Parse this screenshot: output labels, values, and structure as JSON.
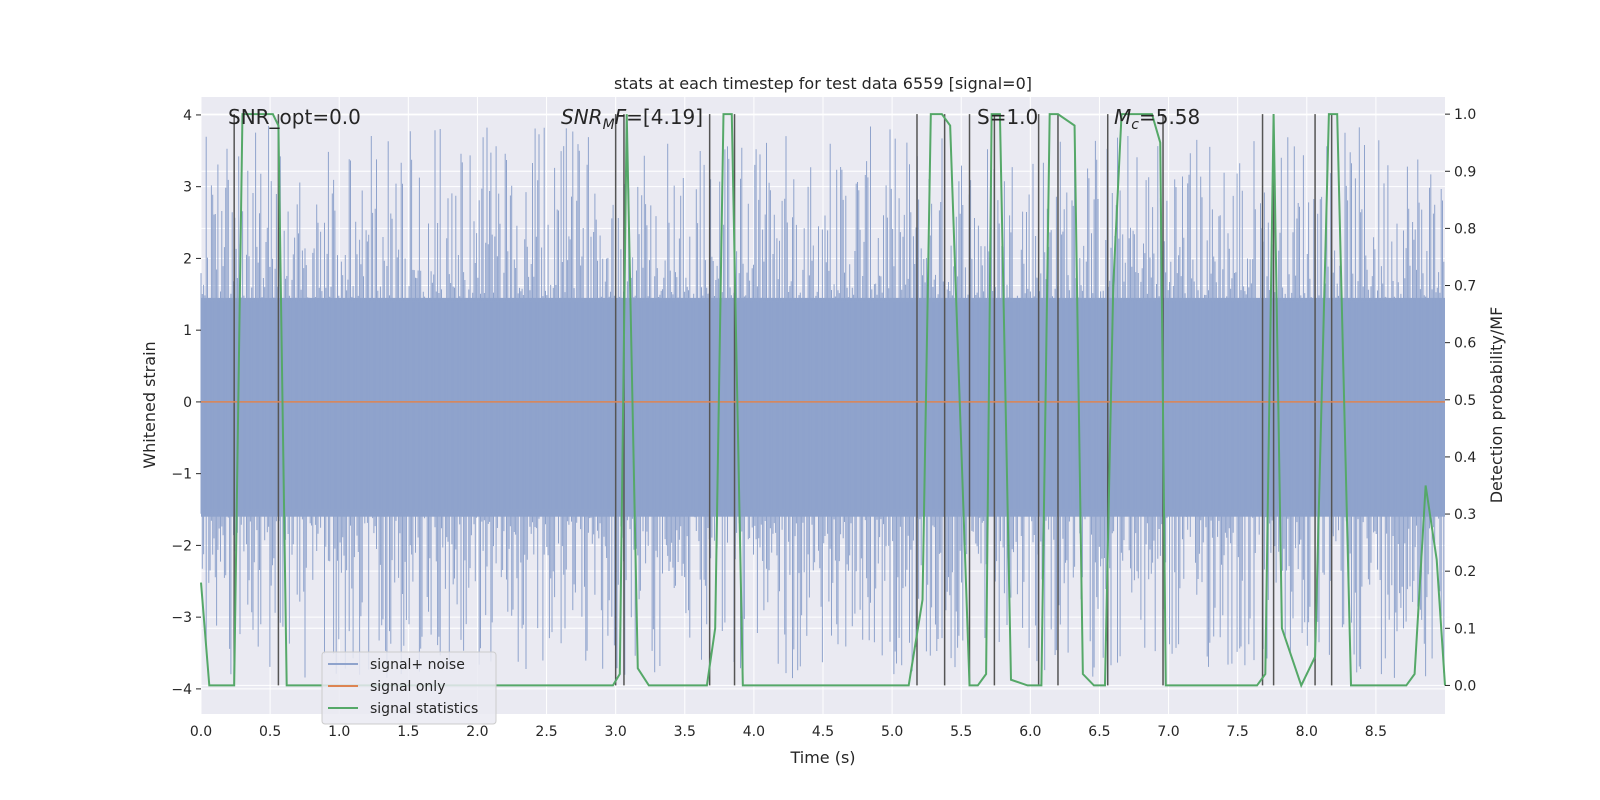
{
  "chart_data": {
    "type": "line",
    "title": "stats at each timestep for test data 6559 [signal=0]",
    "xlabel": "Time (s)",
    "ylabel": "Whitened strain",
    "y2label": "Detection probability/MF",
    "xlim": [
      0.0,
      9.0
    ],
    "ylim": [
      -4.35,
      4.25
    ],
    "y2lim": [
      -0.05,
      1.03
    ],
    "xticks": [
      0.0,
      0.5,
      1.0,
      1.5,
      2.0,
      2.5,
      3.0,
      3.5,
      4.0,
      4.5,
      5.0,
      5.5,
      6.0,
      6.5,
      7.0,
      7.5,
      8.0,
      8.5
    ],
    "xtick_labels": [
      "0.0",
      "0.5",
      "1.0",
      "1.5",
      "2.0",
      "2.5",
      "3.0",
      "3.5",
      "4.0",
      "4.5",
      "5.0",
      "5.5",
      "6.0",
      "6.5",
      "7.0",
      "7.5",
      "8.0",
      "8.5"
    ],
    "yticks": [
      -4,
      -3,
      -2,
      -1,
      0,
      1,
      2,
      3,
      4
    ],
    "ytick_labels": [
      "−4",
      "−3",
      "−2",
      "−1",
      "0",
      "1",
      "2",
      "3",
      "4"
    ],
    "y2ticks": [
      0.0,
      0.1,
      0.2,
      0.3,
      0.4,
      0.5,
      0.6,
      0.7,
      0.8,
      0.9,
      1.0
    ],
    "y2tick_labels": [
      "0.0",
      "0.1",
      "0.2",
      "0.3",
      "0.4",
      "0.5",
      "0.6",
      "0.7",
      "0.8",
      "0.9",
      "1.0"
    ],
    "grid": true,
    "legend_position": "lower-left",
    "annotations": {
      "snr_opt": "SNR_opt=0.0",
      "snr_mf_prefix": "SNR",
      "snr_mf_sub": "M",
      "snr_mf_mid": "F",
      "snr_mf_value": "=[4.19]",
      "s_value": "S=1.0",
      "mc_prefix": "M",
      "mc_sub": "c",
      "mc_value": "=5.58"
    },
    "series": [
      {
        "name": "signal+ noise",
        "color": "#8fa3cc",
        "axis": "left",
        "description": "whitened strain noise trace, amplitude roughly within ±2 with spikes to about ±3.9"
      },
      {
        "name": "signal only",
        "color": "#dd8452",
        "axis": "left",
        "x": [
          0.0,
          9.0
        ],
        "y": [
          0.0,
          0.0
        ]
      },
      {
        "name": "signal statistics",
        "color": "#55a868",
        "axis": "right",
        "x": [
          0.0,
          0.06,
          0.24,
          0.3,
          0.52,
          0.56,
          0.62,
          2.98,
          3.03,
          3.08,
          3.16,
          3.24,
          3.66,
          3.72,
          3.78,
          3.84,
          3.88,
          3.92,
          5.12,
          5.22,
          5.28,
          5.36,
          5.42,
          5.56,
          5.62,
          5.68,
          5.72,
          5.78,
          5.86,
          5.98,
          6.08,
          6.14,
          6.2,
          6.32,
          6.38,
          6.46,
          6.54,
          6.6,
          6.66,
          6.88,
          6.94,
          6.98,
          7.64,
          7.7,
          7.76,
          7.82,
          7.96,
          8.06,
          8.16,
          8.22,
          8.32,
          8.72,
          8.78,
          8.86,
          8.94,
          9.0
        ],
        "y": [
          0.18,
          0.0,
          0.0,
          1.0,
          1.0,
          0.98,
          0.0,
          0.0,
          0.02,
          1.0,
          0.03,
          0.0,
          0.0,
          0.1,
          1.0,
          1.0,
          0.5,
          0.0,
          0.0,
          0.15,
          1.0,
          1.0,
          0.98,
          0.0,
          0.0,
          0.02,
          1.0,
          1.0,
          0.01,
          0.0,
          0.0,
          1.0,
          1.0,
          0.98,
          0.02,
          0.0,
          0.0,
          0.7,
          1.0,
          1.0,
          0.95,
          0.0,
          0.0,
          0.02,
          1.0,
          0.1,
          0.0,
          0.05,
          1.0,
          1.0,
          0.0,
          0.0,
          0.02,
          0.35,
          0.22,
          0.0
        ]
      }
    ],
    "vertical_markers": {
      "color": "#555555",
      "x": [
        0.24,
        0.56,
        3.0,
        3.06,
        3.68,
        3.86,
        5.18,
        5.38,
        5.56,
        5.74,
        6.06,
        6.2,
        6.56,
        6.96,
        7.68,
        7.76,
        8.06,
        8.18
      ]
    }
  }
}
